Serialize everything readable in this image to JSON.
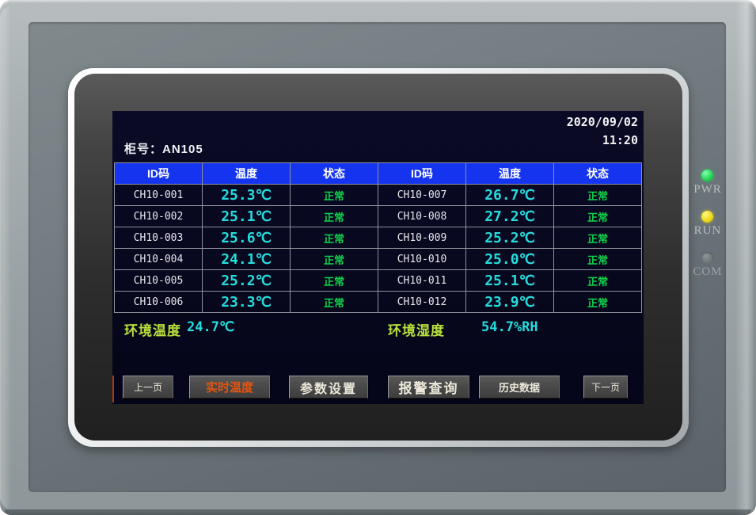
{
  "screen": {
    "date": "2020/09/02",
    "time": "11:20",
    "cabinet_label": "柜号：AN105",
    "table": {
      "headers": [
        "ID码",
        "温度",
        "状态",
        "ID码",
        "温度",
        "状态"
      ],
      "rows": [
        [
          "CH10-001",
          "25.3℃",
          "正常",
          "CH10-007",
          "26.7℃",
          "正常"
        ],
        [
          "CH10-002",
          "25.1℃",
          "正常",
          "CH10-008",
          "27.2℃",
          "正常"
        ],
        [
          "CH10-003",
          "25.6℃",
          "正常",
          "CH10-009",
          "25.2℃",
          "正常"
        ],
        [
          "CH10-004",
          "24.1℃",
          "正常",
          "CH10-010",
          "25.0℃",
          "正常"
        ],
        [
          "CH10-005",
          "25.2℃",
          "正常",
          "CH10-011",
          "25.1℃",
          "正常"
        ],
        [
          "CH10-006",
          "23.3℃",
          "正常",
          "CH10-012",
          "23.9℃",
          "正常"
        ]
      ]
    },
    "environment": {
      "temp_label": "环境温度",
      "temp_value": "24.7℃",
      "humidity_label": "环境湿度",
      "humidity_value": "54.7%RH"
    },
    "nav_buttons": [
      {
        "label": "上一页",
        "active": false
      },
      {
        "label": "实时温度",
        "active": true
      },
      {
        "label": "参数设置",
        "active": false
      },
      {
        "label": "报警查询",
        "active": false
      },
      {
        "label": "历史数据",
        "active": false
      },
      {
        "label": "下一页",
        "active": false
      }
    ]
  },
  "panel": {
    "leds": [
      {
        "label": "PWR",
        "state": "on",
        "color": "#22d455"
      },
      {
        "label": "RUN",
        "state": "on",
        "color": "#ecd816"
      },
      {
        "label": "COM",
        "state": "off",
        "color": "#6e787a"
      }
    ]
  },
  "colors": {
    "header_blue": "#1534f0",
    "value_cyan": "#25dcdc",
    "status_green": "#0ed24a",
    "active_orange": "#e55410",
    "env_label_green": "#b8e03c",
    "display_bg": "#07071d"
  }
}
